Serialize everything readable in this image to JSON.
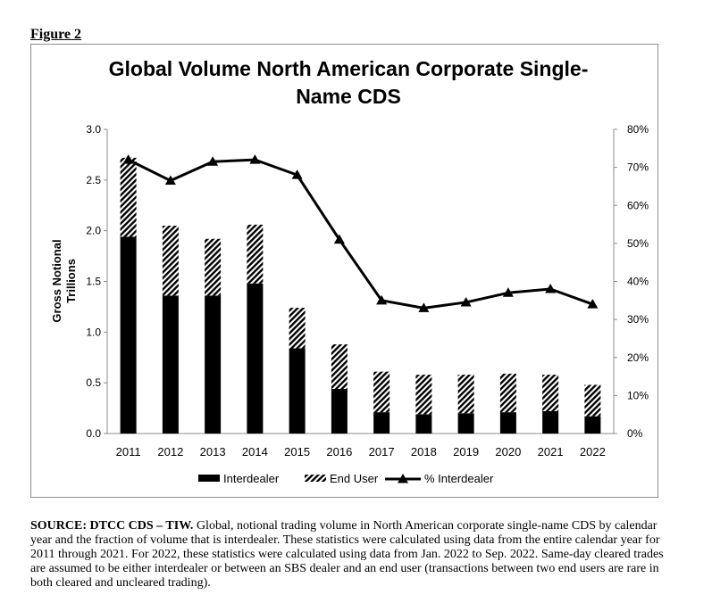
{
  "figure_label": "Figure 2",
  "source": {
    "lead": "SOURCE: DTCC CDS – TIW.",
    "body": " Global, notional trading volume in North American corporate single-name CDS by calendar year and the fraction of volume that is interdealer. These statistics were calculated using data from the entire calendar year for 2011 through 2021. For 2022, these statistics were calculated using data from Jan. 2022 to Sep. 2022. Same-day cleared trades are assumed to be either interdealer or between an SBS dealer and an end user (transactions between two end users are rare in both cleared and uncleared trading)."
  },
  "chart_data": {
    "type": "bar",
    "title": "Global Volume North American Corporate Single-Name CDS",
    "title_lines": [
      "Global Volume North American Corporate Single-",
      "Name CDS"
    ],
    "ylabel_lines": [
      "Gross Notional",
      "Trillions"
    ],
    "xlabel": "",
    "categories": [
      "2011",
      "2012",
      "2013",
      "2014",
      "2015",
      "2016",
      "2017",
      "2018",
      "2019",
      "2020",
      "2021",
      "2022"
    ],
    "stacked": true,
    "series": [
      {
        "name": "Interdealer",
        "kind": "bar",
        "axis": "left",
        "pattern": "solid",
        "color": "#000000",
        "values": [
          1.94,
          1.36,
          1.36,
          1.48,
          0.84,
          0.44,
          0.21,
          0.19,
          0.2,
          0.21,
          0.22,
          0.17
        ]
      },
      {
        "name": "End User",
        "kind": "bar",
        "axis": "left",
        "pattern": "hatch",
        "color": "#000000",
        "values": [
          0.78,
          0.69,
          0.56,
          0.58,
          0.4,
          0.44,
          0.4,
          0.39,
          0.38,
          0.38,
          0.36,
          0.31
        ]
      },
      {
        "name": "% Interdealer",
        "kind": "line",
        "axis": "right",
        "marker": "triangle",
        "color": "#000000",
        "values": [
          72,
          66.5,
          71.5,
          72,
          68,
          51,
          35,
          33,
          34.5,
          37,
          38,
          34
        ]
      }
    ],
    "ylim": [
      0,
      3
    ],
    "yticks": [
      "0.0",
      "0.5",
      "1.0",
      "1.5",
      "2.0",
      "2.5",
      "3.0"
    ],
    "y2lim": [
      0,
      80
    ],
    "y2ticks": [
      "0%",
      "10%",
      "20%",
      "30%",
      "40%",
      "50%",
      "60%",
      "70%",
      "80%"
    ],
    "grid": false,
    "legend_position": "bottom"
  }
}
